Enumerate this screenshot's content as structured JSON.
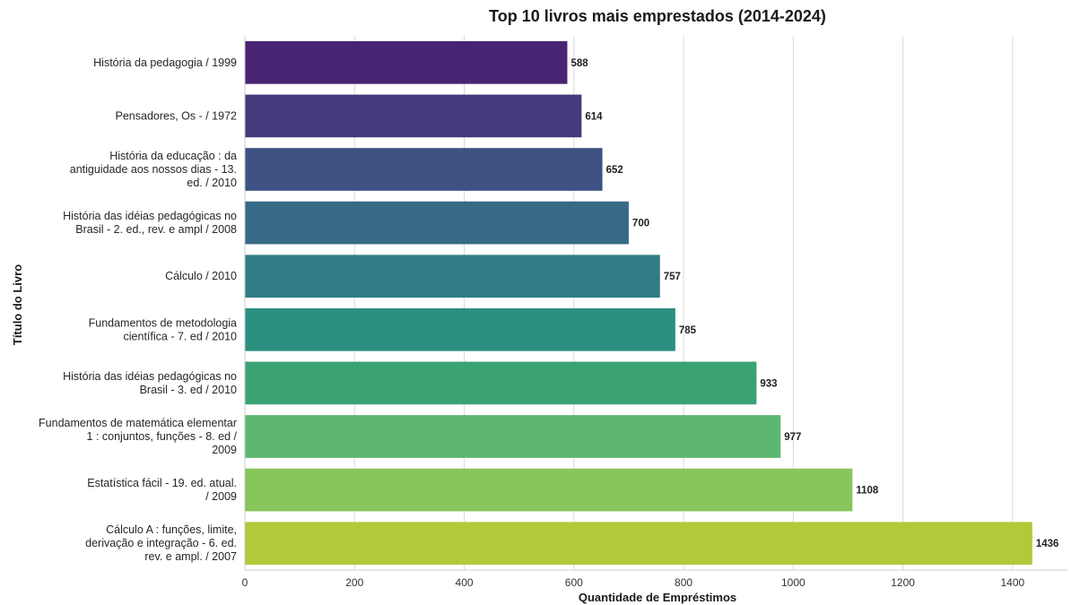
{
  "chart_data": {
    "type": "bar",
    "orientation": "horizontal",
    "title": "Top 10 livros mais emprestados (2014-2024)",
    "xlabel": "Quantidade de Empréstimos",
    "ylabel": "Título do Livro",
    "xlim": [
      0,
      1500
    ],
    "xticks": [
      0,
      200,
      400,
      600,
      800,
      1000,
      1200,
      1400
    ],
    "grid": "vertical",
    "categories": [
      [
        "História da pedagogia / 1999"
      ],
      [
        "Pensadores, Os - / 1972"
      ],
      [
        "História da educação : da",
        "antiguidade aos nossos dias - 13.",
        "ed. / 2010"
      ],
      [
        "História das idéias pedagógicas no",
        "Brasil - 2. ed., rev. e ampl / 2008"
      ],
      [
        "Cálculo / 2010"
      ],
      [
        "Fundamentos de metodologia",
        "científica - 7. ed / 2010"
      ],
      [
        "História das idéias pedagógicas no",
        "Brasil - 3. ed / 2010"
      ],
      [
        "Fundamentos de matemática elementar",
        "1 : conjuntos, funções - 8. ed /",
        "2009"
      ],
      [
        "Estatística fácil - 19. ed. atual.",
        "/ 2009"
      ],
      [
        "Cálculo A : funções, limite,",
        "derivação e integração - 6. ed.",
        "rev. e ampl. / 2007"
      ]
    ],
    "values": [
      588,
      614,
      652,
      700,
      757,
      785,
      933,
      977,
      1108,
      1436
    ],
    "colors": [
      "#482473",
      "#45397d",
      "#3e5283",
      "#376a87",
      "#2f7c85",
      "#2b8f80",
      "#3aa273",
      "#5db76e",
      "#86c65b",
      "#b1ca3c"
    ]
  }
}
